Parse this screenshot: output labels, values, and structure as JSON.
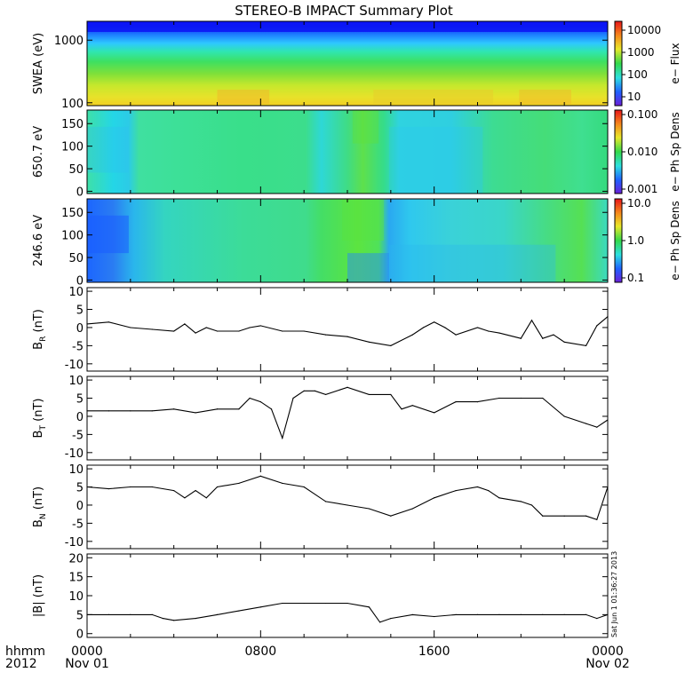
{
  "title": "STEREO-B IMPACT Summary Plot",
  "stamp": "Sat Jun 1 01:36:27 2013",
  "time_axis": {
    "row_labels": [
      "hhmm",
      "2012"
    ],
    "ticks": [
      {
        "t": 0,
        "hhmm": "0000",
        "date": "Nov 01"
      },
      {
        "t": 8,
        "hhmm": "0800",
        "date": ""
      },
      {
        "t": 16,
        "hhmm": "1600",
        "date": ""
      },
      {
        "t": 24,
        "hhmm": "0000",
        "date": "Nov 02"
      }
    ],
    "range_hours": [
      0,
      24
    ]
  },
  "spectrogram_panels": [
    {
      "ylabel": "SWEA (eV)",
      "ticks": [
        {
          "v": 1000,
          "label": "1000"
        },
        {
          "v": 100,
          "label": "100"
        }
      ],
      "ylim": [
        90,
        2000
      ],
      "log": true,
      "colorbar": {
        "title": "e− Flux",
        "ticks": [
          "10000",
          "1000",
          "100",
          "10"
        ]
      }
    },
    {
      "ylabel": "650.7 eV",
      "ticks": [
        {
          "v": 150,
          "label": "150"
        },
        {
          "v": 100,
          "label": "100"
        },
        {
          "v": 50,
          "label": "50"
        },
        {
          "v": 0,
          "label": "0"
        }
      ],
      "ylim": [
        -5,
        180
      ],
      "log": false,
      "colorbar": {
        "title": "e− Ph Sp Dens",
        "ticks": [
          "0.100",
          "0.010",
          "0.001"
        ]
      }
    },
    {
      "ylabel": "246.6 eV",
      "ticks": [
        {
          "v": 150,
          "label": "150"
        },
        {
          "v": 100,
          "label": "100"
        },
        {
          "v": 50,
          "label": "50"
        },
        {
          "v": 0,
          "label": "0"
        }
      ],
      "ylim": [
        -5,
        180
      ],
      "log": false,
      "colorbar": {
        "title": "e− Ph Sp Dens",
        "ticks": [
          "10.0",
          "1.0",
          "0.1"
        ]
      }
    }
  ],
  "chart_data": [
    {
      "type": "line",
      "ylabel_main": "B",
      "ylabel_sub": "R",
      "ylabel_unit": "(nT)",
      "ylim": [
        -12,
        11
      ],
      "yticks": [
        10,
        5,
        0,
        -5,
        -10
      ],
      "x": [
        0,
        1,
        2,
        3,
        4,
        4.5,
        5,
        5.5,
        6,
        7,
        7.5,
        8,
        9,
        10,
        11,
        12,
        13,
        14,
        15,
        15.5,
        16,
        16.5,
        17,
        18,
        18.5,
        19,
        20,
        20.5,
        21,
        21.5,
        22,
        23,
        23.5,
        24
      ],
      "y": [
        1,
        1.5,
        0,
        -0.5,
        -1,
        1,
        -1.5,
        0,
        -1,
        -1,
        0,
        0.5,
        -1,
        -1,
        -2,
        -2.5,
        -4,
        -5,
        -2,
        0,
        1.5,
        0,
        -2,
        0,
        -1,
        -1.5,
        -3,
        2,
        -3,
        -2,
        -4,
        -5,
        0.5,
        3
      ]
    },
    {
      "type": "line",
      "ylabel_main": "B",
      "ylabel_sub": "T",
      "ylabel_unit": "(nT)",
      "ylim": [
        -12,
        11
      ],
      "yticks": [
        10,
        5,
        0,
        -5,
        -10
      ],
      "x": [
        0,
        1,
        2,
        3,
        4,
        5,
        6,
        7,
        7.5,
        8,
        8.5,
        9,
        9.5,
        10,
        10.5,
        11,
        12,
        13,
        14,
        14.5,
        15,
        16,
        17,
        18,
        19,
        20,
        21,
        22,
        23,
        23.5,
        24
      ],
      "y": [
        1.5,
        1.5,
        1.5,
        1.5,
        2,
        1,
        2,
        2,
        5,
        4,
        2,
        -6,
        5,
        7,
        7,
        6,
        8,
        6,
        6,
        2,
        3,
        1,
        4,
        4,
        5,
        5,
        5,
        0,
        -2,
        -3,
        -1
      ]
    },
    {
      "type": "line",
      "ylabel_main": "B",
      "ylabel_sub": "N",
      "ylabel_unit": "(nT)",
      "ylim": [
        -12,
        11
      ],
      "yticks": [
        10,
        5,
        0,
        -5,
        -10
      ],
      "x": [
        0,
        1,
        2,
        3,
        4,
        4.5,
        5,
        5.5,
        6,
        7,
        8,
        9,
        10,
        11,
        12,
        13,
        14,
        15,
        16,
        17,
        18,
        18.5,
        19,
        20,
        20.5,
        21,
        22,
        23,
        23.5,
        24
      ],
      "y": [
        5,
        4.5,
        5,
        5,
        4,
        2,
        4,
        2,
        5,
        6,
        8,
        6,
        5,
        1,
        0,
        -1,
        -3,
        -1,
        2,
        4,
        5,
        4,
        2,
        1,
        0,
        -3,
        -3,
        -3,
        -4,
        5
      ]
    },
    {
      "type": "line",
      "ylabel_main": "|B|",
      "ylabel_sub": "",
      "ylabel_unit": "(nT)",
      "ylim": [
        -1,
        21
      ],
      "yticks": [
        20,
        15,
        10,
        5,
        0
      ],
      "x": [
        0,
        1,
        2,
        3,
        3.5,
        4,
        5,
        6,
        7,
        8,
        9,
        10,
        11,
        12,
        13,
        13.5,
        14,
        15,
        16,
        17,
        18,
        19,
        20,
        21,
        22,
        23,
        23.5,
        24
      ],
      "y": [
        5,
        5,
        5,
        5,
        4,
        3.5,
        4,
        5,
        6,
        7,
        8,
        8,
        8,
        8,
        7,
        3,
        4,
        5,
        4.5,
        5,
        5,
        5,
        5,
        5,
        5,
        5,
        4,
        5
      ]
    }
  ]
}
